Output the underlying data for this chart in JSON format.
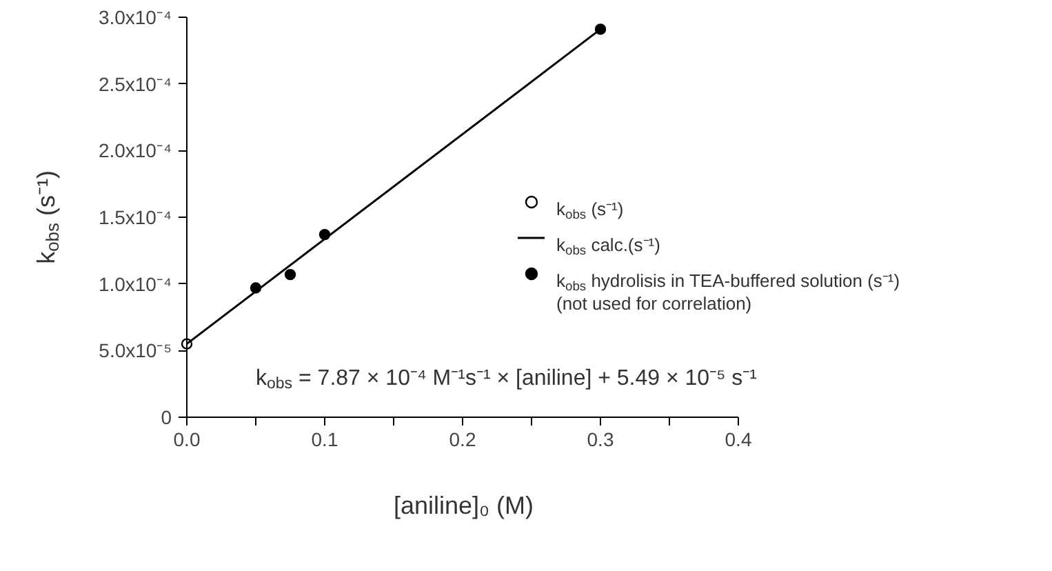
{
  "chart_data": {
    "type": "scatter",
    "xlabel": "[aniline]₀ (M)",
    "ylabel": "k$_{obs}$ (s⁻¹)",
    "xlim": [
      0,
      0.4
    ],
    "ylim": [
      0,
      0.0003
    ],
    "xticks": [
      {
        "value": 0,
        "label": "0.0"
      },
      {
        "value": 0.05,
        "label": null
      },
      {
        "value": 0.1,
        "label": "0.1"
      },
      {
        "value": 0.15,
        "label": null
      },
      {
        "value": 0.2,
        "label": "0.2"
      },
      {
        "value": 0.25,
        "label": null
      },
      {
        "value": 0.3,
        "label": "0.3"
      },
      {
        "value": 0.35,
        "label": null
      },
      {
        "value": 0.4,
        "label": "0.4"
      }
    ],
    "yticks": [
      0,
      {
        "value": 5e-05,
        "label": "5.0x10⁻⁵"
      },
      {
        "value": 0.0001,
        "label": "1.0x10⁻⁴"
      },
      {
        "value": 0.00015,
        "label": "1.5x10⁻⁴"
      },
      {
        "value": 0.0002,
        "label": "2.0x10⁻⁴"
      },
      {
        "value": 0.00025,
        "label": "2.5x10⁻⁴"
      },
      {
        "value": 0.0003,
        "label": "3.0x10⁻⁴"
      }
    ],
    "grid": false,
    "legend": "right",
    "series": [
      {
        "name": "k$_{obs}$ (s⁻¹)",
        "marker": "circle",
        "color": "#ffffff",
        "x": [
          0
        ],
        "values": [
          5.5e-05
        ]
      },
      {
        "name": "k$_{obs}$ calc.(s⁻¹)",
        "type": "line",
        "color": "#000000",
        "x": [
          0,
          0.3
        ],
        "values": [
          5.5e-05,
          0.000291
        ]
      },
      {
        "name": "k$_{obs}$ hydrolisis in TEA-buffered solution (s⁻¹)\n(not used for correlation)",
        "marker": "circle",
        "color": "#000000",
        "x": [
          0.05,
          0.075,
          0.1,
          0.3
        ],
        "values": [
          9.7e-05,
          0.000107,
          0.000137,
          0.000291
        ]
      }
    ],
    "annotations": [
      "k$_{obs}$ = 7.87 × 10⁻⁴ M⁻¹s⁻¹ × [aniline] + 5.49 × 10⁻⁵ s⁻¹"
    ]
  }
}
